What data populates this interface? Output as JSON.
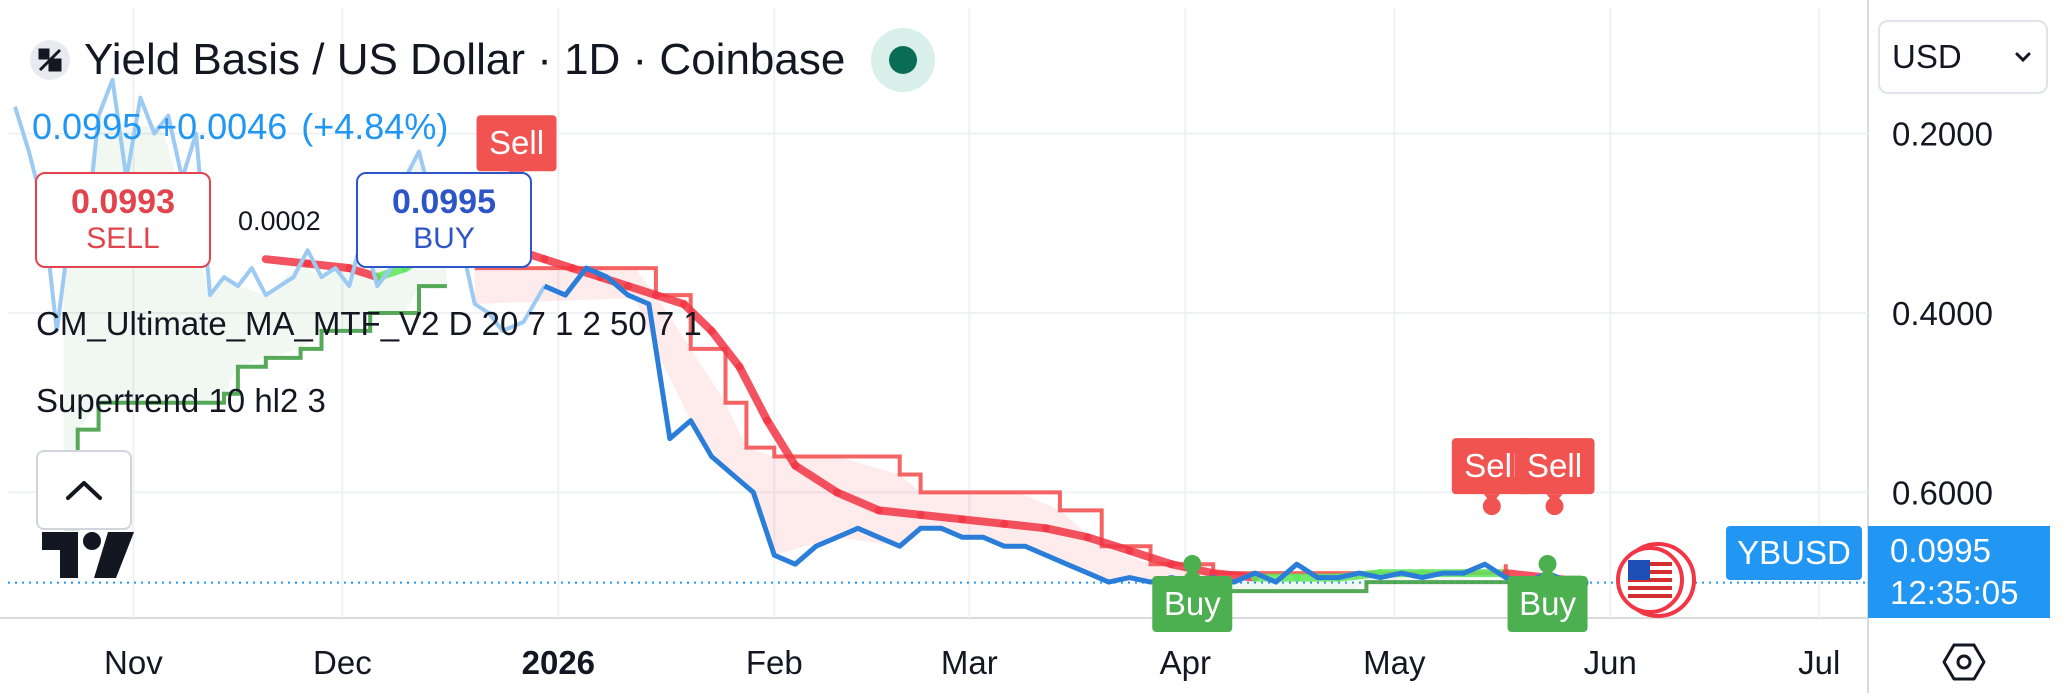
{
  "header": {
    "title": "Yield Basis / US Dollar · 1D · Coinbase",
    "last_price": "0.0995",
    "change": "+0.0046",
    "change_pct": "(+4.84%)"
  },
  "trade": {
    "sell_price": "0.0993",
    "sell_label": "SELL",
    "spread": "0.0002",
    "buy_price": "0.0995",
    "buy_label": "BUY"
  },
  "indicators": {
    "ma": "CM_Ultimate_MA_MTF_V2 D 20 7 1 2 50 7 1",
    "supertrend": "Supertrend 10 hl2 3"
  },
  "currency_select": "USD",
  "price_axis": {
    "ticks": [
      "0.6000",
      "0.4000",
      "0.2000"
    ],
    "symbol": "YBUSD",
    "current": "0.0995",
    "countdown": "12:35:05"
  },
  "time_axis": {
    "labels": [
      {
        "text": "Nov",
        "bold": false
      },
      {
        "text": "Dec",
        "bold": false
      },
      {
        "text": "2026",
        "bold": true
      },
      {
        "text": "Feb",
        "bold": false
      },
      {
        "text": "Mar",
        "bold": false
      },
      {
        "text": "Apr",
        "bold": false
      },
      {
        "text": "May",
        "bold": false
      },
      {
        "text": "Jun",
        "bold": false
      },
      {
        "text": "Jul",
        "bold": false
      }
    ]
  },
  "colors": {
    "price_line": "#2a7ed9",
    "price_line_faded": "#9ccaf2",
    "ma_bear": "#f23645",
    "ma_bull": "#5de85d",
    "supertrend_bull": "#43a047",
    "supertrend_bear": "#f45353",
    "current_price": "#2196f3"
  },
  "chart_data": {
    "type": "line",
    "title": "Yield Basis / US Dollar · 1D · Coinbase",
    "xlabel": "",
    "ylabel": "",
    "x_range": [
      "2025-10-14",
      "2026-07-08"
    ],
    "ylim": [
      0.06,
      0.74
    ],
    "y_ticks": [
      0.2,
      0.4,
      0.6
    ],
    "x_ticks": [
      "Nov",
      "Dec",
      "2026",
      "Feb",
      "Mar",
      "Apr",
      "May",
      "Jun",
      "Jul"
    ],
    "grid": true,
    "current_price": 0.0995,
    "series": [
      {
        "name": "YBUSD",
        "style": "price",
        "x": [
          "2025-10-15",
          "2025-10-17",
          "2025-10-19",
          "2025-10-21",
          "2025-10-23",
          "2025-10-25",
          "2025-10-27",
          "2025-10-29",
          "2025-10-31",
          "2025-11-02",
          "2025-11-04",
          "2025-11-06",
          "2025-11-08",
          "2025-11-10",
          "2025-11-12",
          "2025-11-14",
          "2025-11-16",
          "2025-11-18",
          "2025-11-20",
          "2025-11-22",
          "2025-11-24",
          "2025-11-26",
          "2025-11-28",
          "2025-11-30",
          "2025-12-02",
          "2025-12-04",
          "2025-12-06",
          "2025-12-08",
          "2025-12-10",
          "2025-12-12",
          "2025-12-14",
          "2025-12-16",
          "2025-12-18",
          "2025-12-20",
          "2025-12-22",
          "2025-12-24",
          "2025-12-27",
          "2025-12-30",
          "2026-01-02",
          "2026-01-05",
          "2026-01-08",
          "2026-01-11",
          "2026-01-14",
          "2026-01-17",
          "2026-01-20",
          "2026-01-23",
          "2026-01-26",
          "2026-01-29",
          "2026-02-01",
          "2026-02-04",
          "2026-02-07",
          "2026-02-10",
          "2026-02-13",
          "2026-02-16",
          "2026-02-19",
          "2026-02-22",
          "2026-02-25",
          "2026-02-28",
          "2026-03-03",
          "2026-03-06",
          "2026-03-09",
          "2026-03-12",
          "2026-03-15",
          "2026-03-18",
          "2026-03-21",
          "2026-03-24",
          "2026-03-27",
          "2026-03-30",
          "2026-04-02",
          "2026-04-05",
          "2026-04-08",
          "2026-04-11",
          "2026-04-14",
          "2026-04-17",
          "2026-04-20",
          "2026-04-23",
          "2026-04-26",
          "2026-04-29",
          "2026-05-02",
          "2026-05-05",
          "2026-05-08",
          "2026-05-11",
          "2026-05-14",
          "2026-05-17",
          "2026-05-20",
          "2026-05-23",
          "2026-05-26",
          "2026-05-28"
        ],
        "y": [
          0.63,
          0.58,
          0.52,
          0.38,
          0.5,
          0.47,
          0.62,
          0.66,
          0.55,
          0.64,
          0.6,
          0.62,
          0.55,
          0.6,
          0.42,
          0.44,
          0.43,
          0.45,
          0.42,
          0.43,
          0.44,
          0.47,
          0.44,
          0.45,
          0.43,
          0.49,
          0.43,
          0.45,
          0.55,
          0.58,
          0.52,
          0.5,
          0.48,
          0.41,
          0.4,
          0.38,
          0.39,
          0.43,
          0.42,
          0.45,
          0.44,
          0.42,
          0.41,
          0.26,
          0.28,
          0.24,
          0.22,
          0.2,
          0.13,
          0.12,
          0.14,
          0.15,
          0.16,
          0.15,
          0.14,
          0.16,
          0.16,
          0.15,
          0.15,
          0.14,
          0.14,
          0.13,
          0.12,
          0.11,
          0.1,
          0.105,
          0.1,
          0.105,
          0.1,
          0.105,
          0.1,
          0.11,
          0.1,
          0.12,
          0.105,
          0.105,
          0.11,
          0.105,
          0.11,
          0.105,
          0.11,
          0.11,
          0.12,
          0.105,
          0.1,
          0.11,
          0.1,
          0.0995
        ]
      },
      {
        "name": "CM_Ultimate_MA_MTF_V2 D 20 7 1 2 50 7 1",
        "style": "ma",
        "x": [
          "2025-11-20",
          "2025-11-26",
          "2025-12-02",
          "2025-12-06",
          "2025-12-10",
          "2025-12-14",
          "2025-12-18",
          "2025-12-22",
          "2025-12-26",
          "2025-12-30",
          "2026-01-03",
          "2026-01-07",
          "2026-01-11",
          "2026-01-15",
          "2026-01-19",
          "2026-01-23",
          "2026-01-27",
          "2026-01-31",
          "2026-02-04",
          "2026-02-10",
          "2026-02-16",
          "2026-02-22",
          "2026-02-28",
          "2026-03-06",
          "2026-03-12",
          "2026-03-18",
          "2026-03-24",
          "2026-03-30",
          "2026-04-05",
          "2026-04-11",
          "2026-04-17",
          "2026-04-23",
          "2026-04-29",
          "2026-05-05",
          "2026-05-11",
          "2026-05-17",
          "2026-05-23",
          "2026-05-28"
        ],
        "y": [
          0.46,
          0.455,
          0.45,
          0.44,
          0.45,
          0.47,
          0.48,
          0.475,
          0.47,
          0.46,
          0.45,
          0.44,
          0.43,
          0.42,
          0.41,
          0.38,
          0.34,
          0.28,
          0.23,
          0.2,
          0.18,
          0.175,
          0.17,
          0.165,
          0.16,
          0.15,
          0.135,
          0.12,
          0.11,
          0.105,
          0.105,
          0.105,
          0.11,
          0.11,
          0.11,
          0.11,
          0.105,
          0.1
        ]
      },
      {
        "name": "Supertrend 10 hl2 3 (up)",
        "style": "supertrend-up",
        "x": [
          "2025-10-22",
          "2025-10-24",
          "2025-10-27",
          "2025-10-30",
          "2025-11-05",
          "2025-11-12",
          "2025-11-14",
          "2025-11-16",
          "2025-11-20",
          "2025-11-25",
          "2025-11-28",
          "2025-12-03",
          "2025-12-05",
          "2025-12-10",
          "2025-12-12",
          "2025-12-16"
        ],
        "y": [
          0.16,
          0.27,
          0.3,
          0.3,
          0.3,
          0.3,
          0.31,
          0.34,
          0.35,
          0.36,
          0.38,
          0.38,
          0.4,
          0.4,
          0.43,
          0.43
        ]
      },
      {
        "name": "Supertrend 10 hl2 3 (down)",
        "style": "supertrend-down",
        "x": [
          "2025-12-20",
          "2026-01-12",
          "2026-01-15",
          "2026-01-20",
          "2026-01-25",
          "2026-01-28",
          "2026-02-01",
          "2026-02-10",
          "2026-02-19",
          "2026-02-22",
          "2026-03-08",
          "2026-03-14",
          "2026-03-20",
          "2026-03-27",
          "2026-04-05",
          "2026-04-20",
          "2026-05-05",
          "2026-05-15",
          "2026-05-17"
        ],
        "y": [
          0.45,
          0.45,
          0.42,
          0.36,
          0.3,
          0.25,
          0.24,
          0.24,
          0.22,
          0.2,
          0.2,
          0.18,
          0.14,
          0.12,
          0.11,
          0.11,
          0.11,
          0.11,
          0.12
        ]
      },
      {
        "name": "Supertrend 10 hl2 3 (up, recent)",
        "style": "supertrend-up",
        "x": [
          "2026-04-01",
          "2026-04-25",
          "2026-04-27",
          "2026-05-20",
          "2026-05-22",
          "2026-05-28"
        ],
        "y": [
          0.09,
          0.09,
          0.1,
          0.1,
          0.105,
          0.105
        ]
      }
    ],
    "annotations": [
      {
        "text": "Sell",
        "x": "2025-12-26",
        "y": 0.48,
        "kind": "sell"
      },
      {
        "text": "Sell",
        "x": "2026-05-15",
        "y": 0.12,
        "kind": "sell"
      },
      {
        "text": "Sell",
        "x": "2026-05-24",
        "y": 0.12,
        "kind": "sell"
      },
      {
        "text": "Buy",
        "x": "2026-04-02",
        "y": 0.09,
        "kind": "buy"
      },
      {
        "text": "Buy",
        "x": "2026-05-23",
        "y": 0.09,
        "kind": "buy"
      }
    ]
  }
}
